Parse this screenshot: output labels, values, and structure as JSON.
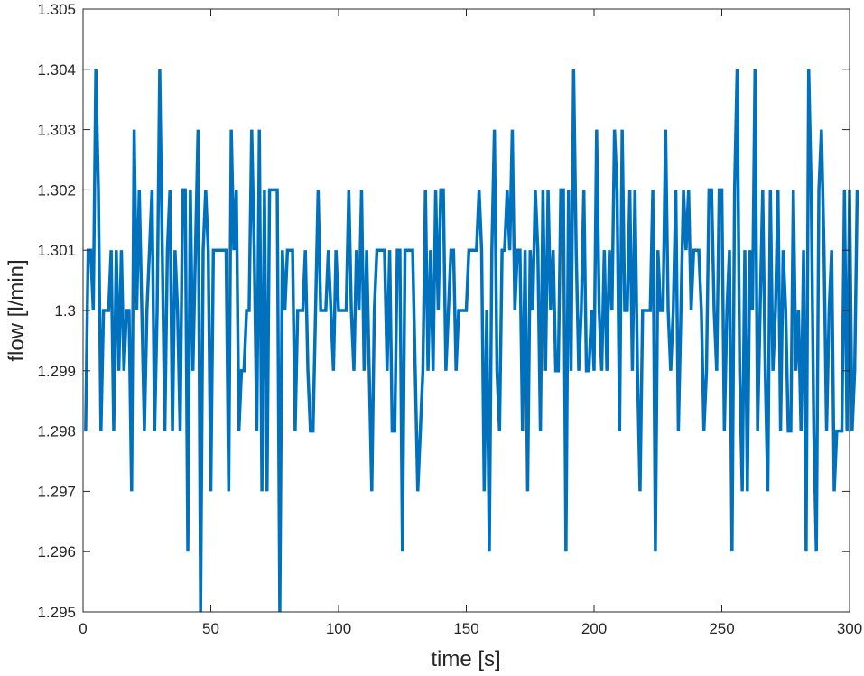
{
  "chart_data": {
    "type": "line",
    "title": "",
    "xlabel": "time [s]",
    "ylabel": "flow [l/min]",
    "xlim": [
      0,
      300
    ],
    "ylim": [
      1.295,
      1.305
    ],
    "grid": false,
    "x_ticks": [
      {
        "value": 0,
        "label": "0"
      },
      {
        "value": 50,
        "label": "50"
      },
      {
        "value": 100,
        "label": "100"
      },
      {
        "value": 150,
        "label": "150"
      },
      {
        "value": 200,
        "label": "200"
      },
      {
        "value": 250,
        "label": "250"
      },
      {
        "value": 300,
        "label": "300"
      }
    ],
    "y_ticks": [
      {
        "value": 1.295,
        "label": "1.295"
      },
      {
        "value": 1.296,
        "label": "1.296"
      },
      {
        "value": 1.297,
        "label": "1.297"
      },
      {
        "value": 1.298,
        "label": "1.298"
      },
      {
        "value": 1.299,
        "label": "1.299"
      },
      {
        "value": 1.3,
        "label": "1.3"
      },
      {
        "value": 1.301,
        "label": "1.301"
      },
      {
        "value": 1.302,
        "label": "1.302"
      },
      {
        "value": 1.303,
        "label": "1.303"
      },
      {
        "value": 1.304,
        "label": "1.304"
      },
      {
        "value": 1.305,
        "label": "1.305"
      }
    ],
    "line_color": "#0072BD",
    "series": [
      {
        "x_start": 1,
        "x_step": 1,
        "values": [
          1.298,
          1.301,
          1.301,
          1.3,
          1.304,
          1.302,
          1.298,
          1.3,
          1.3,
          1.3,
          1.301,
          1.298,
          1.301,
          1.299,
          1.301,
          1.299,
          1.3,
          1.3,
          1.297,
          1.303,
          1.3,
          1.302,
          1.3,
          1.298,
          1.3,
          1.301,
          1.302,
          1.298,
          1.3,
          1.304,
          1.301,
          1.298,
          1.301,
          1.302,
          1.298,
          1.301,
          1.3,
          1.298,
          1.302,
          1.302,
          1.296,
          1.302,
          1.299,
          1.301,
          1.303,
          1.295,
          1.301,
          1.302,
          1.301,
          1.297,
          1.301,
          1.301,
          1.301,
          1.301,
          1.301,
          1.301,
          1.297,
          1.303,
          1.301,
          1.302,
          1.298,
          1.299,
          1.299,
          1.3,
          1.3,
          1.303,
          1.301,
          1.298,
          1.303,
          1.297,
          1.302,
          1.297,
          1.302,
          1.302,
          1.302,
          1.302,
          1.295,
          1.301,
          1.3,
          1.301,
          1.301,
          1.301,
          1.298,
          1.3,
          1.3,
          1.3,
          1.301,
          1.299,
          1.298,
          1.298,
          1.3,
          1.302,
          1.3,
          1.3,
          1.3,
          1.301,
          1.3,
          1.299,
          1.301,
          1.3,
          1.3,
          1.3,
          1.3,
          1.302,
          1.3,
          1.299,
          1.301,
          1.3,
          1.302,
          1.299,
          1.301,
          1.299,
          1.297,
          1.3,
          1.301,
          1.301,
          1.301,
          1.301,
          1.299,
          1.301,
          1.298,
          1.298,
          1.301,
          1.301,
          1.296,
          1.301,
          1.301,
          1.301,
          1.301,
          1.299,
          1.297,
          1.298,
          1.299,
          1.302,
          1.299,
          1.301,
          1.299,
          1.302,
          1.3,
          1.302,
          1.302,
          1.299,
          1.3,
          1.301,
          1.301,
          1.299,
          1.3,
          1.3,
          1.3,
          1.3,
          1.301,
          1.301,
          1.301,
          1.301,
          1.302,
          1.301,
          1.297,
          1.3,
          1.296,
          1.301,
          1.303,
          1.299,
          1.298,
          1.301,
          1.301,
          1.302,
          1.301,
          1.303,
          1.3,
          1.301,
          1.301,
          1.298,
          1.301,
          1.297,
          1.301,
          1.3,
          1.302,
          1.301,
          1.298,
          1.302,
          1.299,
          1.302,
          1.3,
          1.301,
          1.299,
          1.299,
          1.302,
          1.302,
          1.296,
          1.302,
          1.299,
          1.304,
          1.301,
          1.299,
          1.3,
          1.302,
          1.299,
          1.299,
          1.3,
          1.299,
          1.303,
          1.3,
          1.299,
          1.301,
          1.299,
          1.301,
          1.3,
          1.303,
          1.302,
          1.298,
          1.303,
          1.3,
          1.3,
          1.302,
          1.299,
          1.302,
          1.299,
          1.297,
          1.3,
          1.3,
          1.3,
          1.3,
          1.302,
          1.296,
          1.301,
          1.3,
          1.3,
          1.303,
          1.3,
          1.299,
          1.3,
          1.302,
          1.298,
          1.3,
          1.302,
          1.301,
          1.302,
          1.3,
          1.301,
          1.301,
          1.301,
          1.3,
          1.298,
          1.299,
          1.302,
          1.302,
          1.3,
          1.299,
          1.302,
          1.302,
          1.298,
          1.3,
          1.301,
          1.296,
          1.302,
          1.304,
          1.299,
          1.297,
          1.301,
          1.297,
          1.301,
          1.3,
          1.304,
          1.298,
          1.3,
          1.302,
          1.299,
          1.297,
          1.302,
          1.299,
          1.3,
          1.302,
          1.298,
          1.301,
          1.3,
          1.298,
          1.298,
          1.302,
          1.299,
          1.3,
          1.298,
          1.301,
          1.296,
          1.304,
          1.302,
          1.298,
          1.296,
          1.302,
          1.303,
          1.301,
          1.298,
          1.3,
          1.301,
          1.297,
          1.298,
          1.298,
          1.298,
          1.302,
          1.298,
          1.302,
          1.298,
          1.299,
          1.302
        ]
      }
    ]
  }
}
